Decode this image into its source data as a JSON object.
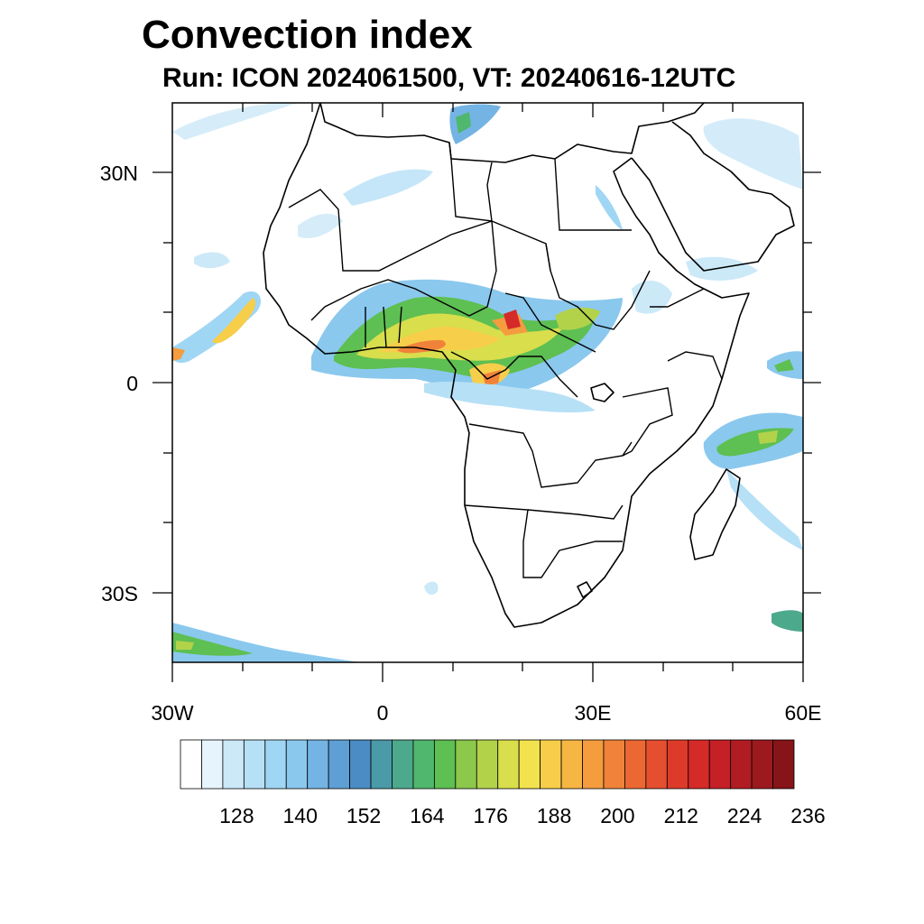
{
  "title": "Convection index",
  "subtitle": "Run: ICON 2024061500,  VT: 20240616-12UTC",
  "map": {
    "lat_labels": [
      "30N",
      "0",
      "30S"
    ],
    "lon_labels": [
      "30W",
      "0",
      "30E",
      "60E"
    ],
    "extent": {
      "lon_min": -30,
      "lon_max": 60,
      "lat_min": -40,
      "lat_max": 40
    }
  },
  "colorbar": {
    "levels": [
      "128",
      "140",
      "152",
      "164",
      "176",
      "188",
      "200",
      "212",
      "224",
      "236"
    ],
    "colors": [
      "#ffffff",
      "#e6f4fd",
      "#cce9f8",
      "#b6e0f6",
      "#9fd6f4",
      "#8ac8ee",
      "#74b4e4",
      "#5e9fd6",
      "#4b8cc4",
      "#4a9aa8",
      "#4da98c",
      "#4fb76e",
      "#5ebf52",
      "#8cc84c",
      "#b2d24a",
      "#d8de4c",
      "#f2e24e",
      "#f7ce4a",
      "#f6b644",
      "#f49c3e",
      "#f0823a",
      "#ec6832",
      "#e54e2e",
      "#de3a2a",
      "#d42a28",
      "#c42026",
      "#b01c22",
      "#9c1a1e",
      "#861418"
    ]
  }
}
